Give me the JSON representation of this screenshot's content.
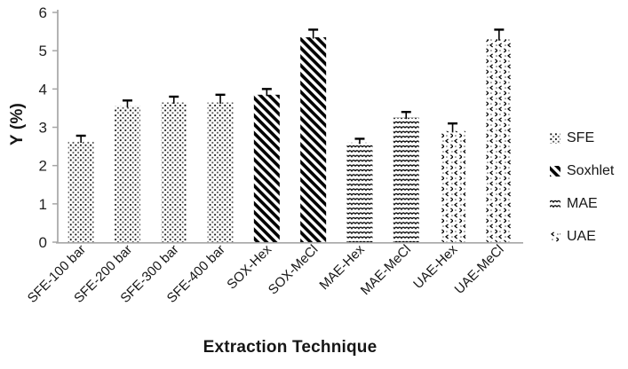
{
  "chart_data": {
    "type": "bar",
    "title": "",
    "xlabel": "Extraction Technique",
    "ylabel": "Y (%)",
    "ylim": [
      0,
      6
    ],
    "yticks": [
      0,
      1,
      2,
      3,
      4,
      5,
      6
    ],
    "grid": false,
    "legend_position": "right",
    "categories": [
      "SFE-100 bar",
      "SFE-200 bar",
      "SFE-300 bar",
      "SFE-400 bar",
      "SOX-Hex",
      "SOX-MeCl",
      "MAE-Hex",
      "MAE-MeCl",
      "UAE-Hex",
      "UAE-MeCl"
    ],
    "values": [
      2.63,
      3.55,
      3.65,
      3.65,
      3.85,
      5.35,
      2.6,
      3.25,
      2.9,
      5.3
    ],
    "errors": [
      0.15,
      0.15,
      0.15,
      0.2,
      0.15,
      0.2,
      0.1,
      0.15,
      0.2,
      0.25
    ],
    "groups": [
      "SFE",
      "SFE",
      "SFE",
      "SFE",
      "Soxhlet",
      "Soxhlet",
      "MAE",
      "MAE",
      "UAE",
      "UAE"
    ],
    "legend": [
      {
        "name": "SFE",
        "pattern": "dots"
      },
      {
        "name": "Soxhlet",
        "pattern": "diagonal-stripes"
      },
      {
        "name": "MAE",
        "pattern": "waves"
      },
      {
        "name": "UAE",
        "pattern": "chevrons"
      }
    ],
    "colors": {
      "pattern_ink": "#000000",
      "axis": "#a6a6a6",
      "text": "#1a1a1a",
      "background": "#ffffff"
    }
  }
}
